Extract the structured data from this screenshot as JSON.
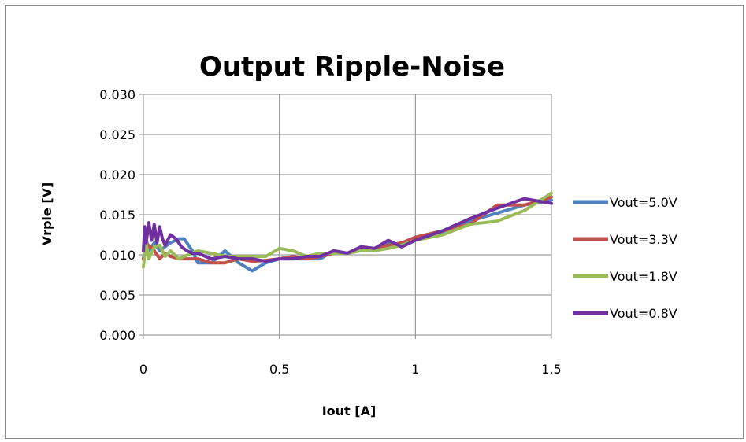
{
  "chart_data": {
    "type": "line",
    "title": "Output Ripple-Noise",
    "xlabel": "Iout [A]",
    "ylabel": "Vrple [V]",
    "xlim": [
      0,
      1.5
    ],
    "ylim": [
      0,
      0.03
    ],
    "x_ticks": [
      0,
      0.5,
      1,
      1.5
    ],
    "x_tick_labels": [
      "0",
      "0.5",
      "1",
      "1.5"
    ],
    "y_ticks": [
      0,
      0.005,
      0.01,
      0.015,
      0.02,
      0.025,
      0.03
    ],
    "y_tick_labels": [
      "0.000",
      "0.005",
      "0.010",
      "0.015",
      "0.020",
      "0.025",
      "0.030"
    ],
    "grid": "major vertical and horizontal",
    "legend_position": "right",
    "series": [
      {
        "name": "Vout=5.0V",
        "color": "#4F81BD",
        "points": [
          [
            0,
            0.0095
          ],
          [
            0.01,
            0.012
          ],
          [
            0.02,
            0.0105
          ],
          [
            0.04,
            0.0115
          ],
          [
            0.06,
            0.0105
          ],
          [
            0.08,
            0.011
          ],
          [
            0.1,
            0.0115
          ],
          [
            0.13,
            0.012
          ],
          [
            0.15,
            0.012
          ],
          [
            0.18,
            0.0105
          ],
          [
            0.2,
            0.009
          ],
          [
            0.25,
            0.009
          ],
          [
            0.3,
            0.0105
          ],
          [
            0.35,
            0.009
          ],
          [
            0.4,
            0.008
          ],
          [
            0.45,
            0.009
          ],
          [
            0.5,
            0.0095
          ],
          [
            0.55,
            0.0095
          ],
          [
            0.6,
            0.0095
          ],
          [
            0.65,
            0.0095
          ],
          [
            0.7,
            0.0105
          ],
          [
            0.75,
            0.0102
          ],
          [
            0.8,
            0.011
          ],
          [
            0.85,
            0.0108
          ],
          [
            0.9,
            0.0115
          ],
          [
            0.95,
            0.011
          ],
          [
            1.0,
            0.012
          ],
          [
            1.1,
            0.0128
          ],
          [
            1.2,
            0.0142
          ],
          [
            1.3,
            0.0152
          ],
          [
            1.4,
            0.0162
          ],
          [
            1.5,
            0.0168
          ]
        ]
      },
      {
        "name": "Vout=3.3V",
        "color": "#C0504D",
        "points": [
          [
            0,
            0.0095
          ],
          [
            0.02,
            0.0112
          ],
          [
            0.04,
            0.0105
          ],
          [
            0.06,
            0.0095
          ],
          [
            0.08,
            0.0102
          ],
          [
            0.1,
            0.0098
          ],
          [
            0.13,
            0.0095
          ],
          [
            0.15,
            0.0095
          ],
          [
            0.2,
            0.0095
          ],
          [
            0.25,
            0.009
          ],
          [
            0.3,
            0.009
          ],
          [
            0.35,
            0.0095
          ],
          [
            0.4,
            0.0092
          ],
          [
            0.45,
            0.0093
          ],
          [
            0.5,
            0.0095
          ],
          [
            0.55,
            0.0098
          ],
          [
            0.6,
            0.0095
          ],
          [
            0.65,
            0.0098
          ],
          [
            0.7,
            0.0102
          ],
          [
            0.75,
            0.0102
          ],
          [
            0.8,
            0.011
          ],
          [
            0.85,
            0.0108
          ],
          [
            0.9,
            0.0112
          ],
          [
            0.95,
            0.0115
          ],
          [
            1.0,
            0.0122
          ],
          [
            1.1,
            0.013
          ],
          [
            1.2,
            0.0138
          ],
          [
            1.3,
            0.0162
          ],
          [
            1.4,
            0.0162
          ],
          [
            1.5,
            0.0172
          ]
        ]
      },
      {
        "name": "Vout=1.8V",
        "color": "#9BBB59",
        "points": [
          [
            0,
            0.0085
          ],
          [
            0.01,
            0.0115
          ],
          [
            0.02,
            0.0095
          ],
          [
            0.04,
            0.011
          ],
          [
            0.06,
            0.0112
          ],
          [
            0.08,
            0.0098
          ],
          [
            0.1,
            0.0105
          ],
          [
            0.13,
            0.0095
          ],
          [
            0.15,
            0.0098
          ],
          [
            0.2,
            0.0105
          ],
          [
            0.25,
            0.0102
          ],
          [
            0.3,
            0.0098
          ],
          [
            0.35,
            0.0098
          ],
          [
            0.4,
            0.0098
          ],
          [
            0.45,
            0.0098
          ],
          [
            0.5,
            0.0108
          ],
          [
            0.55,
            0.0105
          ],
          [
            0.6,
            0.0098
          ],
          [
            0.65,
            0.0102
          ],
          [
            0.7,
            0.0102
          ],
          [
            0.75,
            0.0102
          ],
          [
            0.8,
            0.0105
          ],
          [
            0.85,
            0.0105
          ],
          [
            0.9,
            0.0108
          ],
          [
            0.95,
            0.0112
          ],
          [
            1.0,
            0.0118
          ],
          [
            1.1,
            0.0125
          ],
          [
            1.2,
            0.0138
          ],
          [
            1.3,
            0.0142
          ],
          [
            1.4,
            0.0155
          ],
          [
            1.5,
            0.0177
          ]
        ]
      },
      {
        "name": "Vout=0.8V",
        "color": "#7030A0",
        "points": [
          [
            0,
            0.0105
          ],
          [
            0.005,
            0.0135
          ],
          [
            0.01,
            0.0115
          ],
          [
            0.02,
            0.014
          ],
          [
            0.03,
            0.0118
          ],
          [
            0.04,
            0.0138
          ],
          [
            0.05,
            0.0115
          ],
          [
            0.06,
            0.0135
          ],
          [
            0.07,
            0.012
          ],
          [
            0.08,
            0.0112
          ],
          [
            0.1,
            0.0125
          ],
          [
            0.12,
            0.012
          ],
          [
            0.14,
            0.011
          ],
          [
            0.16,
            0.0105
          ],
          [
            0.18,
            0.0102
          ],
          [
            0.2,
            0.0102
          ],
          [
            0.25,
            0.0095
          ],
          [
            0.3,
            0.0098
          ],
          [
            0.35,
            0.0095
          ],
          [
            0.4,
            0.0095
          ],
          [
            0.45,
            0.0092
          ],
          [
            0.5,
            0.0095
          ],
          [
            0.55,
            0.0095
          ],
          [
            0.6,
            0.0098
          ],
          [
            0.65,
            0.0098
          ],
          [
            0.7,
            0.0105
          ],
          [
            0.75,
            0.0102
          ],
          [
            0.8,
            0.011
          ],
          [
            0.85,
            0.0108
          ],
          [
            0.9,
            0.0118
          ],
          [
            0.95,
            0.011
          ],
          [
            1.0,
            0.0118
          ],
          [
            1.1,
            0.013
          ],
          [
            1.2,
            0.0145
          ],
          [
            1.3,
            0.0158
          ],
          [
            1.4,
            0.017
          ],
          [
            1.5,
            0.0164
          ]
        ]
      }
    ]
  }
}
